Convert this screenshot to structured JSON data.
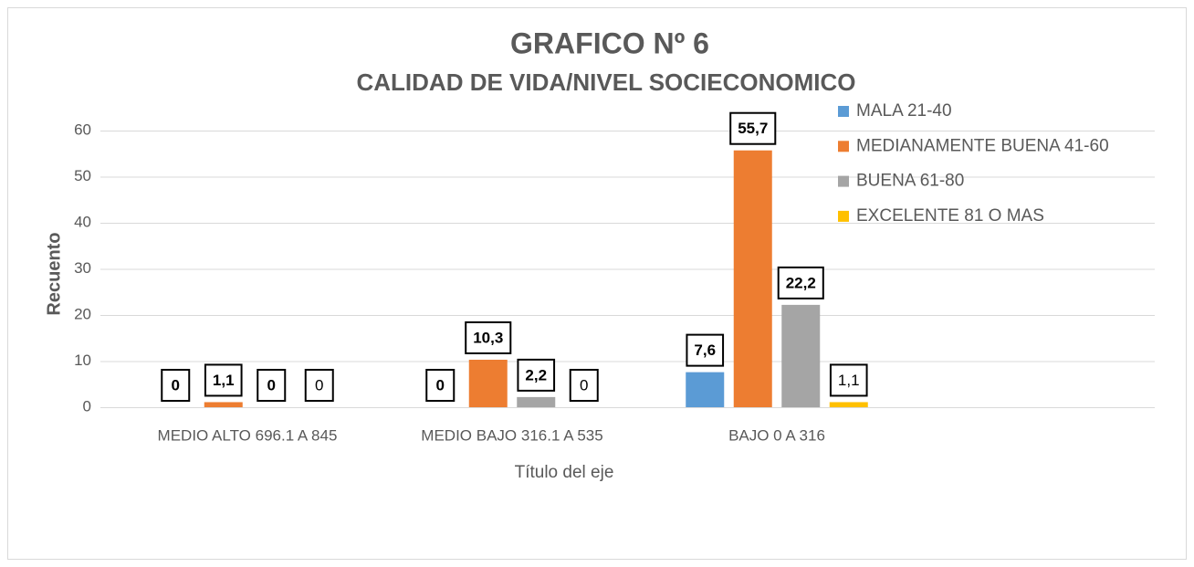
{
  "chart_data": {
    "type": "bar",
    "title": "GRAFICO Nº 6",
    "subtitle": "CALIDAD DE VIDA/NIVEL SOCIECONOMICO",
    "y_axis_label": "Recuento",
    "x_axis_label": "Título del eje",
    "categories": [
      "MEDIO ALTO 696.1 A 845",
      "MEDIO BAJO 316.1 A 535",
      "BAJO 0 A 316",
      null
    ],
    "series": [
      {
        "name": "MALA 21-40",
        "color": "#5b9bd5",
        "values": [
          0,
          0,
          7.6,
          null
        ],
        "value_labels": [
          "0",
          "0",
          "7,6",
          null
        ]
      },
      {
        "name": "MEDIANAMENTE BUENA 41-60",
        "color": "#ed7d31",
        "values": [
          1.1,
          10.3,
          55.7,
          null
        ],
        "value_labels": [
          "1,1",
          "10,3",
          "55,7",
          null
        ]
      },
      {
        "name": "BUENA 61-80",
        "color": "#a5a5a5",
        "values": [
          0,
          2.2,
          22.2,
          null
        ],
        "value_labels": [
          "0",
          "2,2",
          "22,2",
          null
        ]
      },
      {
        "name": "EXCELENTE 81 O MAS",
        "color": "#ffc000",
        "values": [
          0,
          0,
          1.1,
          null
        ],
        "value_labels": [
          "0",
          "0",
          "1,1",
          null
        ]
      }
    ],
    "ylim": [
      0,
      60
    ],
    "yticks": [
      0,
      10,
      20,
      30,
      40,
      50,
      60
    ],
    "grid": true,
    "legend": "right"
  }
}
